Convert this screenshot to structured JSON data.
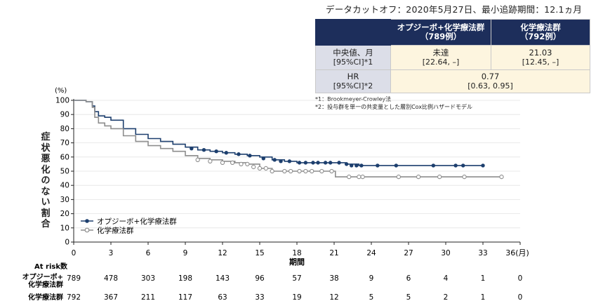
{
  "header": {
    "cutoff_text": "データカットオフ：2020年5月27日、最小追跡期間：12.1ヵ月"
  },
  "summary_table": {
    "col1_line1": "オプジーボ+化学療法群",
    "col1_line2": "（789例）",
    "col2_line1": "化学療法群",
    "col2_line2": "（792例）",
    "row1_label1": "中央値、月",
    "row1_label2": "[95%CI]*1",
    "row1_col1_value": "未達",
    "row1_col1_ci": "[22.64, –]",
    "row1_col2_value": "21.03",
    "row1_col2_ci": "[12.45, –]",
    "row2_label1": "HR",
    "row2_label2": "[95%CI]*2",
    "row2_value": "0.77",
    "row2_ci": "[0.63, 0.95]"
  },
  "footnotes": {
    "note1": "*1：Brookmeyer-Crowley法",
    "note2": "*2：投与群を単一の共変量とした層別Cox比例ハザードモデル"
  },
  "colors": {
    "series1": "#1d3f6e",
    "series2": "#8d8d8d",
    "header_bg": "#1d2e5b"
  },
  "chart_data": {
    "type": "line",
    "subtype": "kaplan-meier",
    "ylabel_unit": "(%)",
    "ylabel": "症状悪化のない割合",
    "xlabel": "期間",
    "xunit": "36(月)",
    "xlim": [
      0,
      36
    ],
    "ylim": [
      0,
      100
    ],
    "xticks": [
      "0",
      "3",
      "6",
      "9",
      "12",
      "15",
      "18",
      "21",
      "24",
      "27",
      "30",
      "33"
    ],
    "yticks": [
      "0",
      "10",
      "20",
      "30",
      "40",
      "50",
      "60",
      "70",
      "80",
      "90",
      "100"
    ],
    "series": [
      {
        "name": "オプジーボ+化学療法群",
        "color": "#1d3f6e",
        "x": [
          0,
          0.5,
          1.0,
          1.5,
          1.7,
          2.0,
          2.5,
          3.0,
          4.0,
          5.0,
          6.0,
          7.0,
          8.0,
          9.0,
          10.0,
          11.0,
          12.0,
          13.0,
          14.0,
          15.0,
          16.0,
          17.0,
          18.0,
          19.0,
          20.0,
          21.0,
          22.0,
          23.0,
          24.0,
          30.0,
          33.0
        ],
        "y": [
          100,
          100,
          99,
          96,
          92,
          89,
          88,
          86,
          80,
          76,
          73,
          71,
          69,
          67,
          65,
          64,
          63,
          62,
          61,
          60,
          58,
          57,
          56,
          56,
          56,
          56,
          55,
          54,
          54,
          54,
          54
        ],
        "censor_x": [
          9.5,
          10.5,
          11.5,
          12.3,
          13.3,
          14.2,
          15.3,
          16.2,
          16.7,
          17.4,
          18.2,
          18.7,
          19.3,
          19.7,
          20.3,
          20.7,
          21.4,
          22.0,
          22.4,
          22.8,
          23.2,
          24.5,
          26.0,
          29.0,
          30.8,
          31.4,
          33.0
        ],
        "censor_y": [
          66,
          65,
          64,
          63,
          62,
          61,
          59,
          58,
          57,
          57,
          56,
          56,
          56,
          56,
          56,
          56,
          56,
          55,
          54,
          54,
          54,
          54,
          54,
          54,
          54,
          54,
          54
        ]
      },
      {
        "name": "化学療法群",
        "color": "#8d8d8d",
        "x": [
          0,
          0.5,
          1.0,
          1.5,
          1.7,
          2.0,
          2.5,
          3.0,
          4.0,
          5.0,
          6.0,
          7.0,
          8.0,
          9.0,
          10.0,
          11.0,
          12.0,
          13.0,
          14.0,
          15.0,
          16.0,
          17.0,
          18.0,
          19.0,
          20.0,
          21.0,
          21.1,
          24.0,
          34.5
        ],
        "y": [
          100,
          100,
          99,
          95,
          88,
          84,
          82,
          80,
          75,
          71,
          68,
          66,
          64,
          61,
          59,
          58,
          57,
          56,
          55,
          52,
          50,
          50,
          50,
          50,
          50,
          50,
          46,
          46,
          46
        ],
        "censor_x": [
          10.0,
          11.0,
          12.0,
          12.8,
          13.5,
          14.0,
          14.5,
          15.0,
          15.5,
          16.0,
          17.0,
          17.5,
          18.2,
          18.7,
          19.2,
          20.0,
          20.8,
          22.2,
          23.0,
          23.3,
          26.2,
          27.8,
          29.5,
          31.5,
          34.5
        ],
        "censor_y": [
          58,
          57,
          56,
          56,
          55,
          55,
          53,
          52,
          52,
          50,
          50,
          50,
          50,
          50,
          50,
          50,
          50,
          46,
          46,
          46,
          46,
          46,
          46,
          46,
          46
        ]
      }
    ],
    "at_risk": {
      "label": "At risk数",
      "rows": [
        {
          "label_line1": "オプジーボ+",
          "label_line2": "化学療法群",
          "values": [
            "789",
            "478",
            "303",
            "198",
            "143",
            "96",
            "57",
            "38",
            "9",
            "6",
            "4",
            "1",
            "0"
          ]
        },
        {
          "label_line1": "化学療法群",
          "label_line2": "",
          "values": [
            "792",
            "367",
            "211",
            "117",
            "63",
            "33",
            "19",
            "12",
            "5",
            "5",
            "2",
            "1",
            "0"
          ]
        }
      ]
    }
  }
}
